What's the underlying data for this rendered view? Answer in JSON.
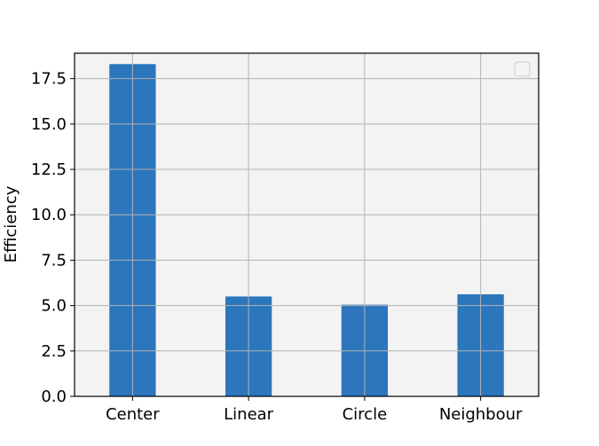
{
  "chart_data": {
    "type": "bar",
    "categories": [
      "Center",
      "Linear",
      "Circle",
      "Neighbour"
    ],
    "values": [
      18.3,
      5.5,
      5.05,
      5.62
    ],
    "title": "",
    "xlabel": "",
    "ylabel": "Efficiency",
    "ylim": [
      0,
      18.9
    ],
    "yticks": [
      0.0,
      2.5,
      5.0,
      7.5,
      10.0,
      12.5,
      15.0,
      17.5
    ],
    "ytick_labels": [
      "0.0",
      "2.5",
      "5.0",
      "7.5",
      "10.0",
      "12.5",
      "15.0",
      "17.5"
    ],
    "grid": true,
    "legend": "upper-right-empty",
    "colors": {
      "bar": "#2b76bd",
      "plot_background": "#f3f3f3",
      "grid": "#b3b3b3",
      "axis": "#000000"
    }
  }
}
